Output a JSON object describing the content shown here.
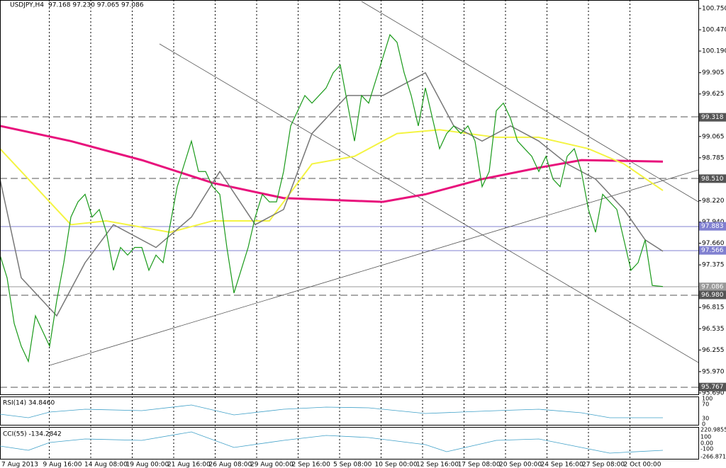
{
  "header": {
    "symbol": "USDJPY,H4",
    "ohlc": "97.168 97.230 97.065 97.086"
  },
  "price_axis": {
    "labels": [
      "100.750",
      "100.470",
      "100.190",
      "99.905",
      "99.625",
      "99.065",
      "98.785",
      "98.220",
      "97.940",
      "97.660",
      "97.375",
      "96.815",
      "96.535",
      "96.255",
      "95.970",
      "95.690"
    ],
    "markers": [
      "99.318",
      "98.510",
      "97.883",
      "97.566",
      "97.086",
      "96.980",
      "95.767"
    ]
  },
  "time_axis": {
    "labels": [
      "7 Aug 2013",
      "9 Aug 16:00",
      "14 Aug 08:00",
      "19 Aug 00:00",
      "21 Aug 16:00",
      "26 Aug 08:00",
      "29 Aug 00:00",
      "2 Sep 16:00",
      "5 Sep 08:00",
      "10 Sep 00:00",
      "12 Sep 16:00",
      "17 Sep 08:00",
      "20 Sep 00:00",
      "24 Sep 16:00",
      "27 Sep 08:00",
      "2 Oct 00:00"
    ]
  },
  "rsi": {
    "label": "RSI(14) 34.8460",
    "levels": [
      "100",
      "70",
      "30",
      "0"
    ]
  },
  "cci": {
    "label": "CCI(55) -134.2842",
    "levels": [
      "220.9855",
      "100",
      "0.00",
      "-100",
      "-266.8717"
    ]
  }
}
